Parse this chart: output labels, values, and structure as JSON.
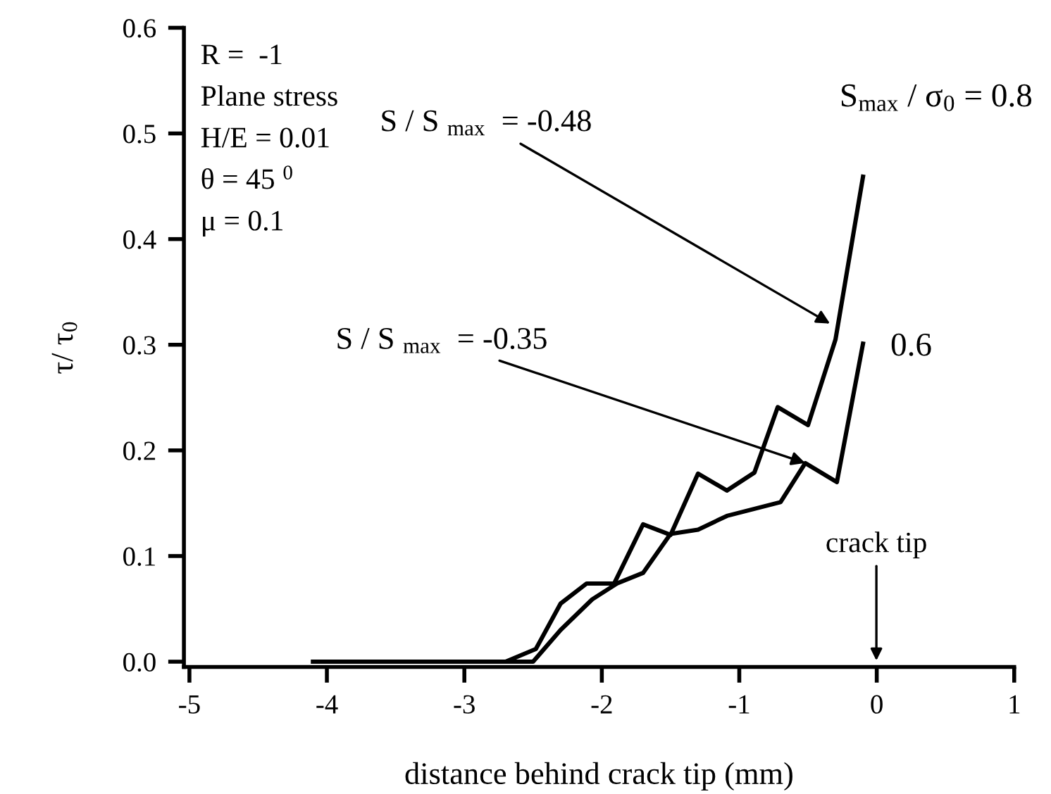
{
  "chart_data": {
    "type": "line",
    "xlabel": "distance behind crack tip (mm)",
    "ylabel": "τ/ τ$_{0}$",
    "xlim": [
      -5.04,
      1
    ],
    "xticks": [
      -5,
      -4,
      -3,
      -2,
      -1,
      0,
      1
    ],
    "ylim": [
      -0.005,
      0.6
    ],
    "yticks": [
      {
        "value": 0,
        "label": "0.0"
      },
      0.1,
      0.2,
      0.3,
      0.4,
      0.5,
      0.6
    ],
    "grid": false,
    "legend": false,
    "marker": "none",
    "line_style": "solid",
    "series": [
      {
        "name": "S$_{max}$ / σ$_{0}$ = 0.8",
        "color": "#000000",
        "x": [
          -4.1,
          -2.7,
          -2.48,
          -2.3,
          -2.11,
          -1.91,
          -1.7,
          -1.5,
          -1.3,
          -1.09,
          -0.89,
          -0.72,
          -0.5,
          -0.3,
          -0.1
        ],
        "values": [
          0,
          0,
          0.012,
          0.055,
          0.074,
          0.074,
          0.13,
          0.12,
          0.178,
          0.162,
          0.179,
          0.241,
          0.224,
          0.305,
          0.459
        ]
      },
      {
        "name": "0.6",
        "color": "#000000",
        "x": [
          -4.1,
          -2.5,
          -2.3,
          -2.07,
          -1.89,
          -1.7,
          -1.5,
          -1.3,
          -1.09,
          -0.7,
          -0.52,
          -0.29,
          -0.1
        ],
        "values": [
          0,
          0,
          0.03,
          0.059,
          0.074,
          0.084,
          0.121,
          0.125,
          0.138,
          0.151,
          0.188,
          0.17,
          0.301
        ]
      }
    ],
    "annotations": [
      "R =  -1",
      "Plane stress",
      "H/E = 0.01",
      "θ = 45 $^{0}$",
      "μ = 0.1",
      {
        "text": "S / S $_{max}$  = -0.48",
        "x": -0.34,
        "y": 0.32
      },
      {
        "text": "S / S $_{max}$  = -0.35",
        "x": -0.52,
        "y": 0.188
      },
      "crack tip"
    ]
  }
}
